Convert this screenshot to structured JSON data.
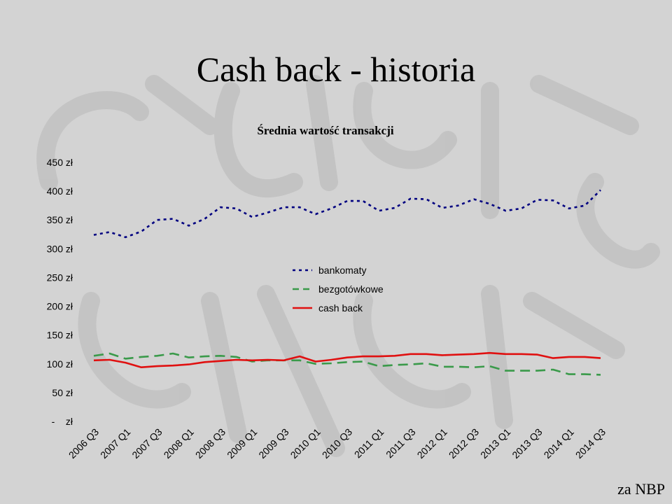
{
  "slide": {
    "title": "Cash back - historia",
    "source": "za NBP"
  },
  "chart_data": {
    "type": "line",
    "title": "Średnia wartość transakcji",
    "xlabel": "",
    "ylabel": "",
    "ylim": [
      0,
      450
    ],
    "y_ticks": [
      {
        "value": 450,
        "label": "450 zł"
      },
      {
        "value": 400,
        "label": "400 zł"
      },
      {
        "value": 350,
        "label": "350 zł"
      },
      {
        "value": 300,
        "label": "300 zł"
      },
      {
        "value": 250,
        "label": "250 zł"
      },
      {
        "value": 200,
        "label": "200 zł"
      },
      {
        "value": 150,
        "label": "150 zł"
      },
      {
        "value": 100,
        "label": "100 zł"
      },
      {
        "value": 50,
        "label": "50 zł"
      },
      {
        "value": 0,
        "label": "-    zł"
      }
    ],
    "grid": false,
    "legend": "center-left",
    "categories": [
      "2006 Q3",
      "2006 Q4",
      "2007 Q1",
      "2007 Q2",
      "2007 Q3",
      "2007 Q4",
      "2008 Q1",
      "2008 Q2",
      "2008 Q3",
      "2008 Q4",
      "2009 Q1",
      "2009 Q2",
      "2009 Q3",
      "2009 Q4",
      "2010 Q1",
      "2010 Q2",
      "2010 Q3",
      "2010 Q4",
      "2011 Q1",
      "2011 Q2",
      "2011 Q3",
      "2011 Q4",
      "2012 Q1",
      "2012 Q2",
      "2012 Q3",
      "2012 Q4",
      "2013 Q1",
      "2013 Q2",
      "2013 Q3",
      "2013 Q4",
      "2014 Q1",
      "2014 Q2",
      "2014 Q3"
    ],
    "x_tick_labels": [
      "2006 Q3",
      "2007 Q1",
      "2007 Q3",
      "2008 Q1",
      "2008 Q3",
      "2009 Q1",
      "2009 Q3",
      "2010 Q1",
      "2010 Q3",
      "2011 Q1",
      "2011 Q3",
      "2012 Q1",
      "2012 Q3",
      "2013 Q1",
      "2013 Q3",
      "2014 Q1",
      "2014 Q3"
    ],
    "series": [
      {
        "name": "bankomaty",
        "color": "#000080",
        "dash": "dotted",
        "values": [
          324,
          329,
          320,
          330,
          350,
          352,
          340,
          352,
          372,
          370,
          355,
          363,
          372,
          372,
          360,
          370,
          383,
          383,
          366,
          371,
          387,
          386,
          371,
          375,
          386,
          378,
          366,
          370,
          385,
          384,
          370,
          375,
          402
        ]
      },
      {
        "name": "bezgotówkowe",
        "color": "#3a9a4a",
        "dash": "dashed",
        "values": [
          114,
          118,
          109,
          112,
          114,
          118,
          111,
          113,
          114,
          112,
          104,
          106,
          106,
          106,
          100,
          101,
          103,
          104,
          96,
          98,
          99,
          101,
          95,
          95,
          94,
          96,
          88,
          88,
          88,
          90,
          82,
          82,
          81
        ]
      },
      {
        "name": "cash back",
        "color": "#e01010",
        "dash": "solid",
        "values": [
          106,
          107,
          102,
          94,
          96,
          97,
          99,
          103,
          105,
          107,
          106,
          107,
          106,
          113,
          104,
          107,
          111,
          113,
          113,
          114,
          117,
          117,
          115,
          116,
          117,
          119,
          117,
          117,
          116,
          110,
          112,
          112,
          110
        ]
      }
    ]
  }
}
